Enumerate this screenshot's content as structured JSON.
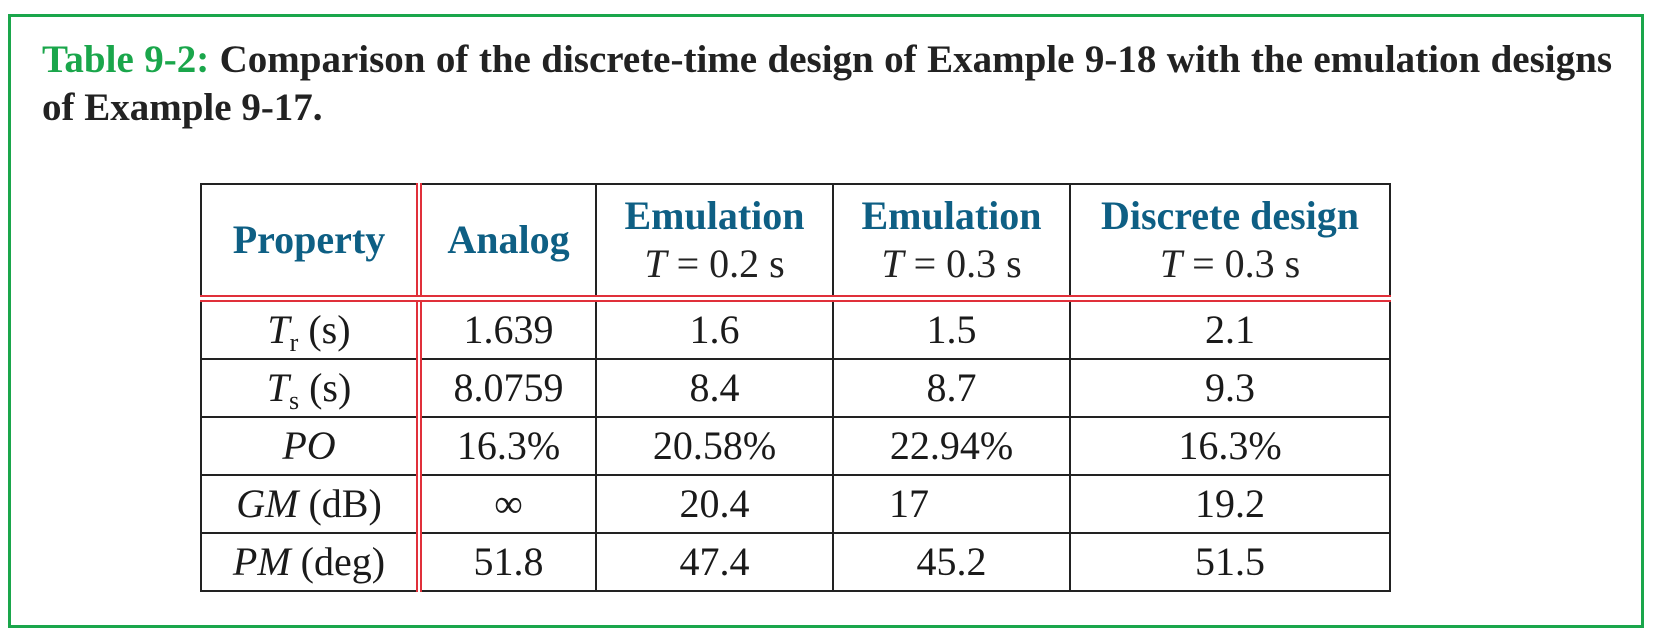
{
  "caption": {
    "label": "Table 9-2:",
    "text": "Comparison of the discrete-time design of Example 9-18 with the emulation designs of Example 9-17."
  },
  "table": {
    "headers": [
      {
        "main": "Property",
        "sub": ""
      },
      {
        "main": "Analog",
        "sub": ""
      },
      {
        "main": "Emulation",
        "sub_var": "T",
        "sub_rest": " = 0.2 s"
      },
      {
        "main": "Emulation",
        "sub_var": "T",
        "sub_rest": " = 0.3 s"
      },
      {
        "main": "Discrete design",
        "sub_var": "T",
        "sub_rest": " = 0.3 s"
      }
    ],
    "rows": [
      {
        "prop_var": "T",
        "prop_sub": "r",
        "prop_unit": " (s)",
        "values": [
          "1.639",
          "1.6",
          "1.5",
          "2.1"
        ]
      },
      {
        "prop_var": "T",
        "prop_sub": "s",
        "prop_unit": " (s)",
        "values": [
          "8.0759",
          "8.4",
          "8.7",
          "9.3"
        ]
      },
      {
        "prop_var": "PO",
        "prop_sub": "",
        "prop_unit": "",
        "values": [
          "16.3%",
          "20.58%",
          "22.94%",
          "16.3%"
        ]
      },
      {
        "prop_var": "GM",
        "prop_sub": "",
        "prop_unit": " (dB)",
        "values": [
          "∞",
          "20.4",
          "17",
          "19.2"
        ]
      },
      {
        "prop_var": "PM",
        "prop_sub": "",
        "prop_unit": " (deg)",
        "values": [
          "51.8",
          "47.4",
          "45.2",
          "51.5"
        ]
      }
    ]
  },
  "colors": {
    "frame": "#1aa64b",
    "header_text": "#0e5f84",
    "rule": "#e0303a"
  }
}
